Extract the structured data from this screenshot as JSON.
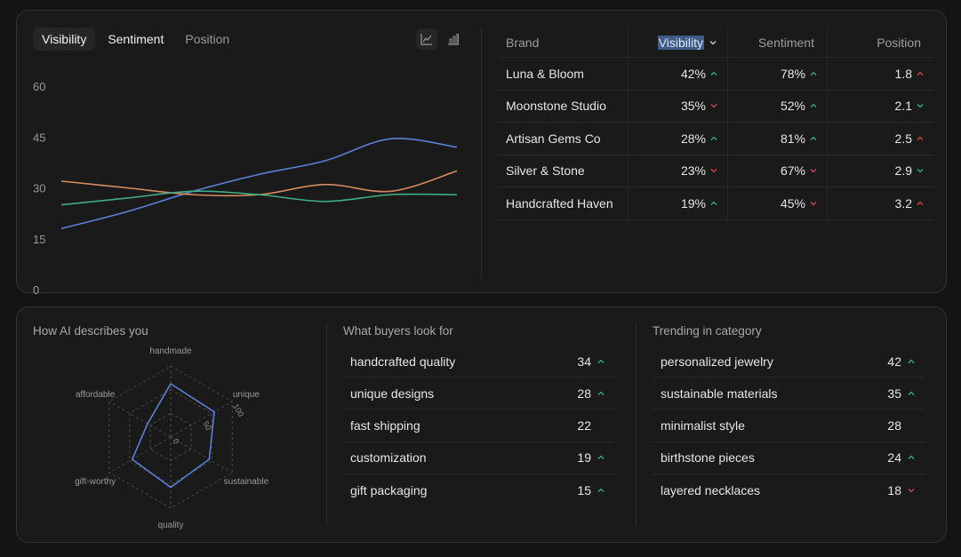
{
  "tabs": [
    {
      "label": "Visibility",
      "active": true
    },
    {
      "label": "Sentiment",
      "active": false
    },
    {
      "label": "Position",
      "active": false
    }
  ],
  "chart_data": {
    "type": "line",
    "x": [
      0,
      1,
      2,
      3,
      4,
      5,
      6
    ],
    "yticks": [
      "60",
      "45",
      "30",
      "15",
      "0"
    ],
    "ylim": [
      0,
      60
    ],
    "series": [
      {
        "color": "#5b7fd6",
        "values": [
          18,
          23,
          29,
          34,
          38,
          44.5,
          42
        ]
      },
      {
        "color": "#d78a5f",
        "values": [
          32,
          30,
          28,
          28,
          31,
          29,
          35
        ]
      },
      {
        "color": "#3fae84",
        "values": [
          25,
          27,
          29,
          28,
          26,
          28,
          28
        ]
      }
    ]
  },
  "table": {
    "headers": {
      "brand": "Brand",
      "visibility": "Visibility",
      "sentiment": "Sentiment",
      "position": "Position"
    },
    "rows": [
      {
        "brand": "Luna & Bloom",
        "visibility": "42%",
        "vis_trend": "up",
        "sentiment": "78%",
        "sent_trend": "up",
        "position": "1.8",
        "pos_trend": "up-red"
      },
      {
        "brand": "Moonstone Studio",
        "visibility": "35%",
        "vis_trend": "down",
        "sentiment": "52%",
        "sent_trend": "up",
        "position": "2.1",
        "pos_trend": "down-green"
      },
      {
        "brand": "Artisan Gems Co",
        "visibility": "28%",
        "vis_trend": "up",
        "sentiment": "81%",
        "sent_trend": "up",
        "position": "2.5",
        "pos_trend": "up-red"
      },
      {
        "brand": "Silver & Stone",
        "visibility": "23%",
        "vis_trend": "down",
        "sentiment": "67%",
        "sent_trend": "down",
        "position": "2.9",
        "pos_trend": "down-green"
      },
      {
        "brand": "Handcrafted Haven",
        "visibility": "19%",
        "vis_trend": "up",
        "sentiment": "45%",
        "sent_trend": "down",
        "position": "3.2",
        "pos_trend": "up-red"
      }
    ]
  },
  "radar": {
    "title": "How AI describes you",
    "axes": [
      "handmade",
      "unique",
      "sustainable",
      "quality",
      "gift-worthy",
      "affordable"
    ],
    "values": [
      90,
      85,
      75,
      85,
      75,
      45
    ],
    "scale_labels": [
      "0",
      "50",
      "100"
    ],
    "max": 120
  },
  "buyers": {
    "title": "What buyers look for",
    "items": [
      {
        "label": "handcrafted quality",
        "value": "34",
        "trend": "up"
      },
      {
        "label": "unique designs",
        "value": "28",
        "trend": "up"
      },
      {
        "label": "fast shipping",
        "value": "22",
        "trend": "none"
      },
      {
        "label": "customization",
        "value": "19",
        "trend": "up"
      },
      {
        "label": "gift packaging",
        "value": "15",
        "trend": "up"
      }
    ]
  },
  "trending": {
    "title": "Trending in category",
    "items": [
      {
        "label": "personalized jewelry",
        "value": "42",
        "trend": "up"
      },
      {
        "label": "sustainable materials",
        "value": "35",
        "trend": "up"
      },
      {
        "label": "minimalist style",
        "value": "28",
        "trend": "none"
      },
      {
        "label": "birthstone pieces",
        "value": "24",
        "trend": "up"
      },
      {
        "label": "layered necklaces",
        "value": "18",
        "trend": "down"
      }
    ]
  },
  "colors": {
    "up": "#35b07c",
    "down": "#d8424f"
  }
}
